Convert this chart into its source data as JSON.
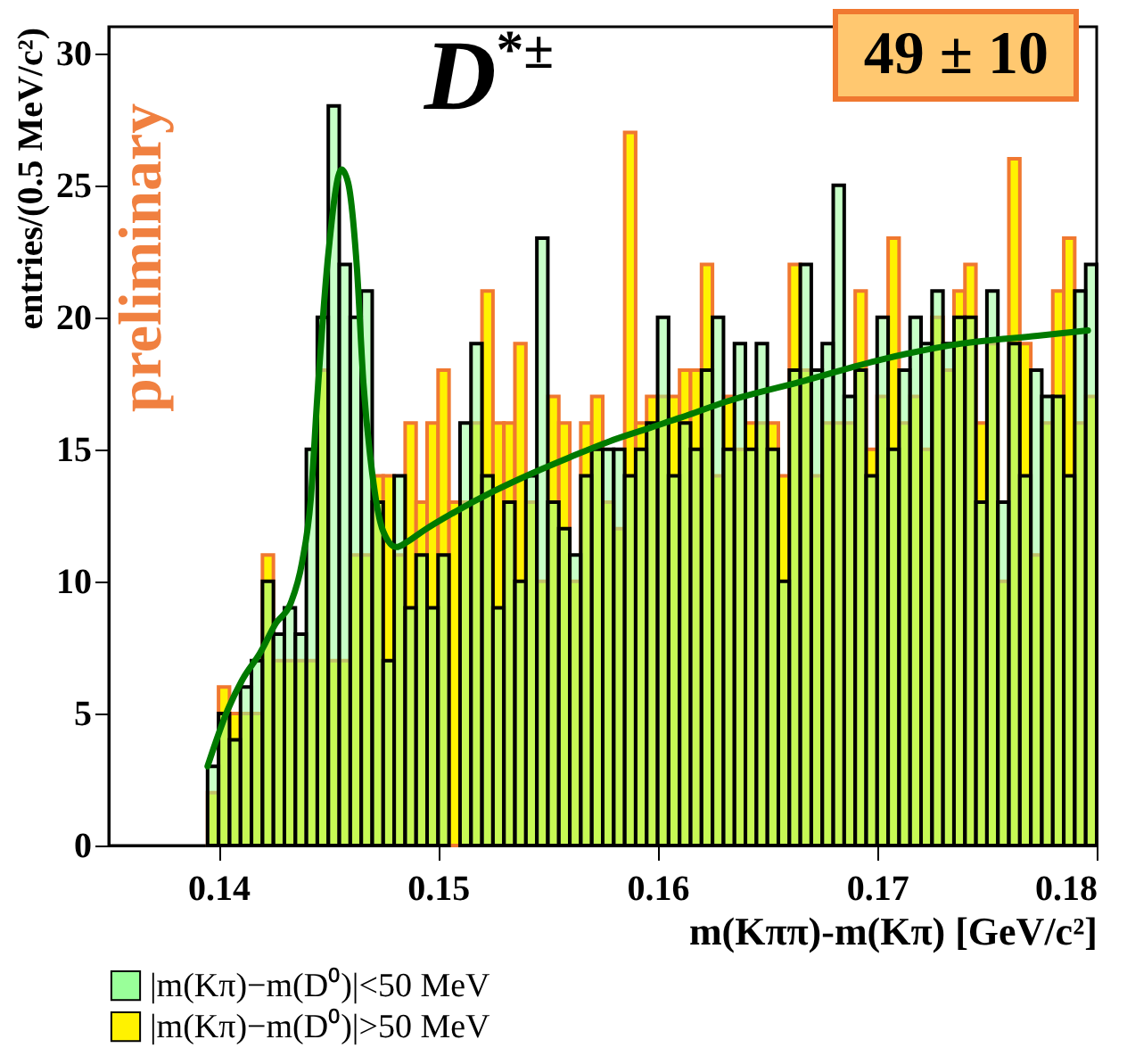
{
  "chart_data": {
    "type": "histogram",
    "xlabel": "m(Kππ)-m(Kπ) [GeV/c²]",
    "ylabel": "entries/(0.5 MeV/c²)",
    "annotations": [
      "D$^{*±}$",
      "49 ± 10",
      "preliminary"
    ],
    "xlim": [
      0.135,
      0.18
    ],
    "xticks": [
      0.14,
      0.15,
      0.16,
      0.17,
      0.18
    ],
    "ylim": [
      0,
      31
    ],
    "yticks": [
      0,
      5,
      10,
      15,
      20,
      25,
      30
    ],
    "legend": "bottom",
    "bins": [
      0.1395,
      0.14,
      0.1405,
      0.141,
      0.1415,
      0.142,
      0.1425,
      0.143,
      0.1435,
      0.144,
      0.1445,
      0.145,
      0.1455,
      0.146,
      0.1465,
      0.147,
      0.1475,
      0.148,
      0.1485,
      0.149,
      0.1495,
      0.15,
      0.1505,
      0.151,
      0.1515,
      0.152,
      0.1525,
      0.153,
      0.1535,
      0.154,
      0.1545,
      0.155,
      0.1555,
      0.156,
      0.1565,
      0.157,
      0.1575,
      0.158,
      0.1585,
      0.159,
      0.1595,
      0.16,
      0.1605,
      0.161,
      0.1615,
      0.162,
      0.1625,
      0.163,
      0.1635,
      0.164,
      0.1645,
      0.165,
      0.1655,
      0.166,
      0.1665,
      0.167,
      0.1675,
      0.168,
      0.1685,
      0.169,
      0.1695,
      0.17,
      0.1705,
      0.171,
      0.1715,
      0.172,
      0.1725,
      0.173,
      0.1735,
      0.174,
      0.1745,
      0.175,
      0.1755,
      0.176,
      0.1765,
      0.177,
      0.1775,
      0.178,
      0.1785,
      0.179,
      0.1795,
      0.18
    ],
    "series": [
      {
        "name": "|m(Kπ)−m(D⁰)|<50 MeV",
        "color": "#99ff99",
        "values": [
          3,
          5,
          4,
          6,
          7,
          10,
          8,
          9,
          8,
          15,
          20,
          28,
          22,
          20,
          21,
          13,
          7,
          14,
          9,
          11,
          9,
          11,
          null,
          16,
          19,
          14,
          9,
          13,
          10,
          14,
          23,
          13,
          12,
          11,
          14,
          15,
          15,
          15,
          14,
          15,
          16,
          20,
          14,
          16,
          15,
          18,
          20,
          15,
          19,
          15,
          19,
          15,
          10,
          18,
          22,
          18,
          19,
          25,
          17,
          18,
          14,
          20,
          15,
          18,
          20,
          19,
          21,
          19,
          20,
          20,
          13,
          21,
          13,
          19,
          14,
          18,
          17,
          17,
          14,
          21,
          22
        ]
      },
      {
        "name": "|m(Kπ)−m(D⁰)|>50 MeV",
        "color": "#fff200",
        "values": [
          2,
          6,
          5,
          5,
          5,
          11,
          7,
          7,
          7,
          7,
          18,
          7,
          7,
          11,
          11,
          14,
          14,
          11,
          16,
          13,
          16,
          18,
          13,
          13,
          16,
          21,
          16,
          16,
          19,
          13,
          10,
          17,
          16,
          10,
          16,
          17,
          13,
          12,
          27,
          16,
          17,
          17,
          17,
          18,
          18,
          22,
          14,
          17,
          15,
          16,
          16,
          16,
          14,
          22,
          18,
          14,
          16,
          16,
          16,
          21,
          15,
          17,
          23,
          16,
          17,
          15,
          20,
          18,
          21,
          22,
          16,
          19,
          10,
          26,
          19,
          11,
          16,
          21,
          23,
          16,
          17
        ]
      },
      {
        "type": "line",
        "color": "#007a00",
        "x": [
          0.1395,
          0.1404,
          0.1411,
          0.1419,
          0.1426,
          0.1433,
          0.1438,
          0.1442,
          0.1445,
          0.145,
          0.1456,
          0.1459,
          0.1463,
          0.1466,
          0.147,
          0.1475,
          0.1481,
          0.1486,
          0.1493,
          0.1507,
          0.1525,
          0.1543,
          0.156,
          0.1578,
          0.1596,
          0.1614,
          0.1631,
          0.1667,
          0.1702,
          0.1738,
          0.1773,
          0.1796
        ],
        "values": [
          3.0,
          5.1,
          6.3,
          7.3,
          8.4,
          9.2,
          10.7,
          13.1,
          17.0,
          22.4,
          25.6,
          25.1,
          21.9,
          17.5,
          14.1,
          11.9,
          11.3,
          11.5,
          11.9,
          12.6,
          13.4,
          14.1,
          14.7,
          15.3,
          15.8,
          16.3,
          16.8,
          17.6,
          18.4,
          19.0,
          19.3,
          19.5
        ]
      }
    ]
  }
}
